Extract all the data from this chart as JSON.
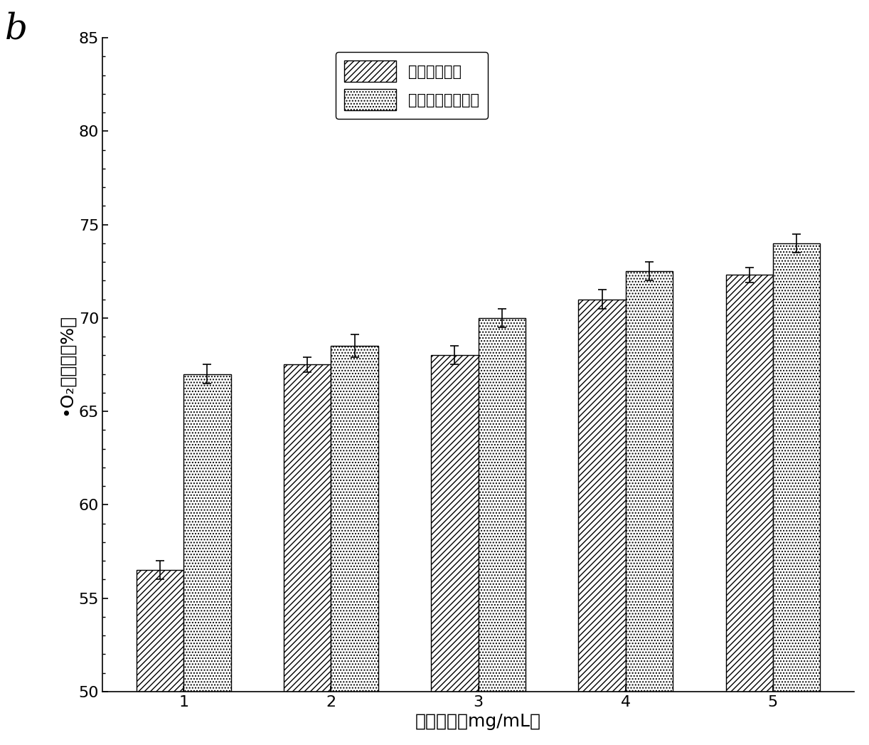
{
  "categories": [
    1,
    2,
    3,
    4,
    5
  ],
  "series1_values": [
    56.5,
    67.5,
    68.0,
    71.0,
    72.3
  ],
  "series2_values": [
    67.0,
    68.5,
    70.0,
    72.5,
    74.0
  ],
  "series1_errors": [
    0.5,
    0.4,
    0.5,
    0.5,
    0.4
  ],
  "series2_errors": [
    0.5,
    0.6,
    0.5,
    0.5,
    0.5
  ],
  "series1_label": "羊栅菜糟多糖",
  "series2_label": "降解的羊栅菜多糖",
  "xlabel": "样品浓度（mg/mL）",
  "ylabel": "•O₂清除率（%）",
  "ylim": [
    50,
    85
  ],
  "yticks": [
    50,
    55,
    60,
    65,
    70,
    75,
    80,
    85
  ],
  "panel_label": "b",
  "bar_width": 0.32,
  "background_color": "#ffffff",
  "bar_edge_color": "#000000",
  "hatch1": "////",
  "hatch2": "....",
  "title_fontsize": 18,
  "label_fontsize": 18,
  "tick_fontsize": 16,
  "legend_fontsize": 15
}
